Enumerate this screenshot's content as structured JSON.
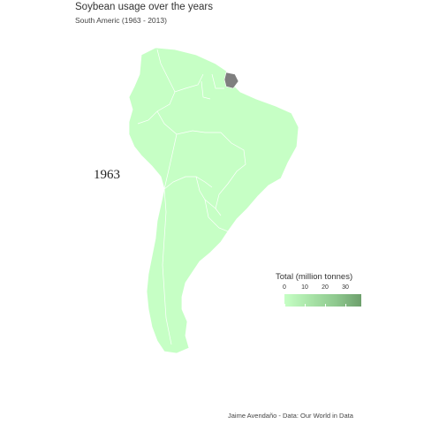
{
  "header": {
    "title": "Soybean usage over the years",
    "subtitle": "South Americ (1963 - 2013)"
  },
  "map": {
    "year_label": "1963",
    "fill_color": "#c6ffc5",
    "border_color": "#ffffff",
    "no_data_color": "#7f7f7f",
    "no_data_region": "French Guiana"
  },
  "legend": {
    "title": "Total (million tonnes)",
    "ticks": [
      "0",
      "10",
      "20",
      "30"
    ],
    "color_low": "#c6ffc5",
    "color_high": "#6d9f6c"
  },
  "caption": "Jaime Avendaño - Data: Our World in Data"
}
